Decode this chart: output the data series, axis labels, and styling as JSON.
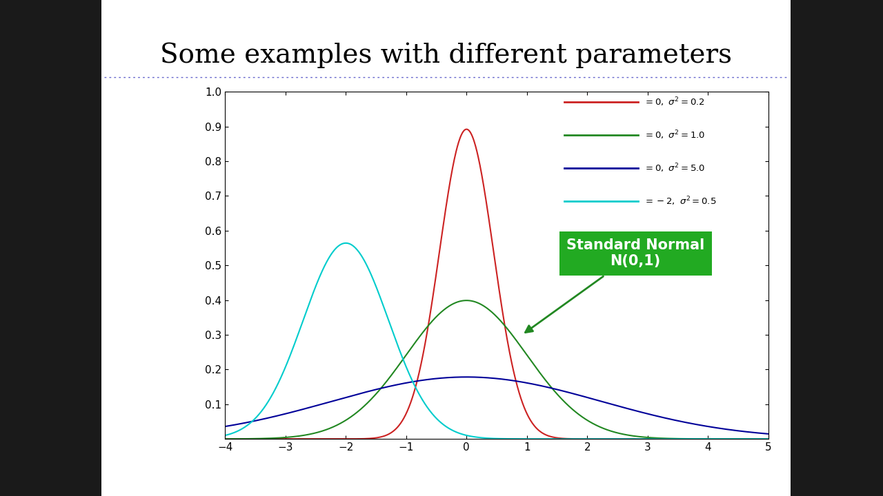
{
  "title": "Some examples with different parameters",
  "title_fontsize": 28,
  "title_font": "serif",
  "slide_bg": "#ffffff",
  "left_panel_color": "#1a1a1a",
  "right_panel_color": "#1a1a1a",
  "plot_bg_color": "#ffffff",
  "xlim": [
    -4,
    5
  ],
  "ylim": [
    0,
    1.0
  ],
  "yticks": [
    0.1,
    0.2,
    0.3,
    0.4,
    0.5,
    0.6,
    0.7,
    0.8,
    0.9,
    1
  ],
  "xticks": [
    -4,
    -3,
    -2,
    -1,
    0,
    1,
    2,
    3,
    4,
    5
  ],
  "curves": [
    {
      "mu": 0,
      "var": 0.2,
      "color": "#cc2222"
    },
    {
      "mu": 0,
      "var": 1.0,
      "color": "#228822"
    },
    {
      "mu": 0,
      "var": 5.0,
      "color": "#000099"
    },
    {
      "mu": -2,
      "var": 0.5,
      "color": "#00cccc"
    }
  ],
  "annotation_text": "Standard Normal\nN(0,1)",
  "annotation_box_color": "#22aa22",
  "annotation_text_color": "#ffffff",
  "legend_labels": [
    "= 0, σ² = 0.2",
    "= 0, σ² = 1.0",
    "= 0, σ² = 5.0",
    "= -2, σ² = 0.5"
  ],
  "legend_colors": [
    "#cc2222",
    "#228822",
    "#000099",
    "#00cccc"
  ],
  "dotted_line_color": "#6666cc"
}
